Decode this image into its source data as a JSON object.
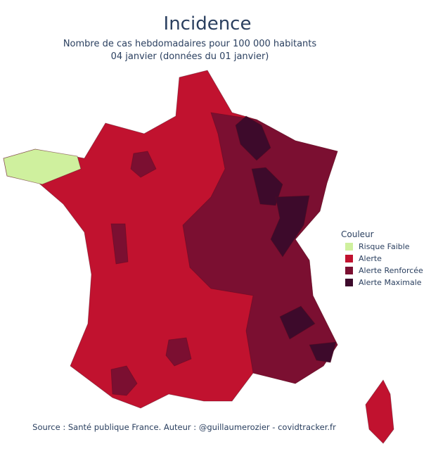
{
  "header": {
    "title": "Incidence",
    "subtitle": "Nombre de cas hebdomadaires pour 100 000 habitants",
    "date": "04 janvier (données du 01 janvier)"
  },
  "legend": {
    "title": "Couleur",
    "items": [
      {
        "label": "Risque Faible",
        "color": "#cff09e"
      },
      {
        "label": "Alerte",
        "color": "#c1122f"
      },
      {
        "label": "Alerte Renforcée",
        "color": "#7b0f31"
      },
      {
        "label": "Alerte Maximale",
        "color": "#3d0a2b"
      }
    ]
  },
  "source": "Source : Santé publique France. Auteur : @guillaumerozier - covidtracker.fr"
}
